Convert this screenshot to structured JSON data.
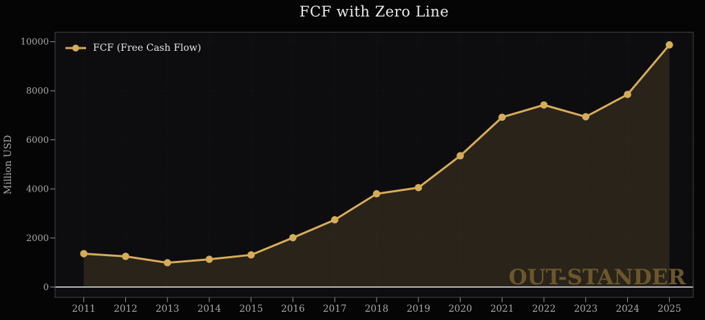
{
  "title": "FCF with Zero Line",
  "watermark": "OUT-STANDER",
  "colors": {
    "accent": "#d7ac59",
    "area_fill": "rgba(215,172,89,0.14)",
    "zero_line": "#b5b5b5",
    "background": "#050505",
    "plot_background": "#0d0d10",
    "grid": "rgba(255,255,255,0.06)",
    "spine": "#45454c",
    "tick": "#999999",
    "tick_label": "#a9a9a9",
    "title_text": "#ececec",
    "legend_text": "#e4e4e4",
    "watermark_color": "#6b572a"
  },
  "chart_data": {
    "type": "line",
    "title": "FCF with Zero Line",
    "xlabel": "",
    "ylabel": "Million USD",
    "categories": [
      "2011",
      "2012",
      "2013",
      "2014",
      "2015",
      "2016",
      "2017",
      "2018",
      "2019",
      "2020",
      "2021",
      "2022",
      "2023",
      "2024",
      "2025"
    ],
    "series": [
      {
        "name": "FCF (Free Cash Flow)",
        "values": [
          1360,
          1250,
          990,
          1130,
          1310,
          2010,
          2740,
          3800,
          4050,
          5350,
          6920,
          7420,
          6940,
          7850,
          9870
        ]
      }
    ],
    "ylim": [
      -420,
      10390
    ],
    "yticks": [
      0,
      2000,
      4000,
      6000,
      8000,
      10000
    ],
    "grid": true,
    "grid_style": "dotted",
    "legend_position": "upper-left",
    "marker": "circle",
    "zero_line": true,
    "area_fill": true
  }
}
